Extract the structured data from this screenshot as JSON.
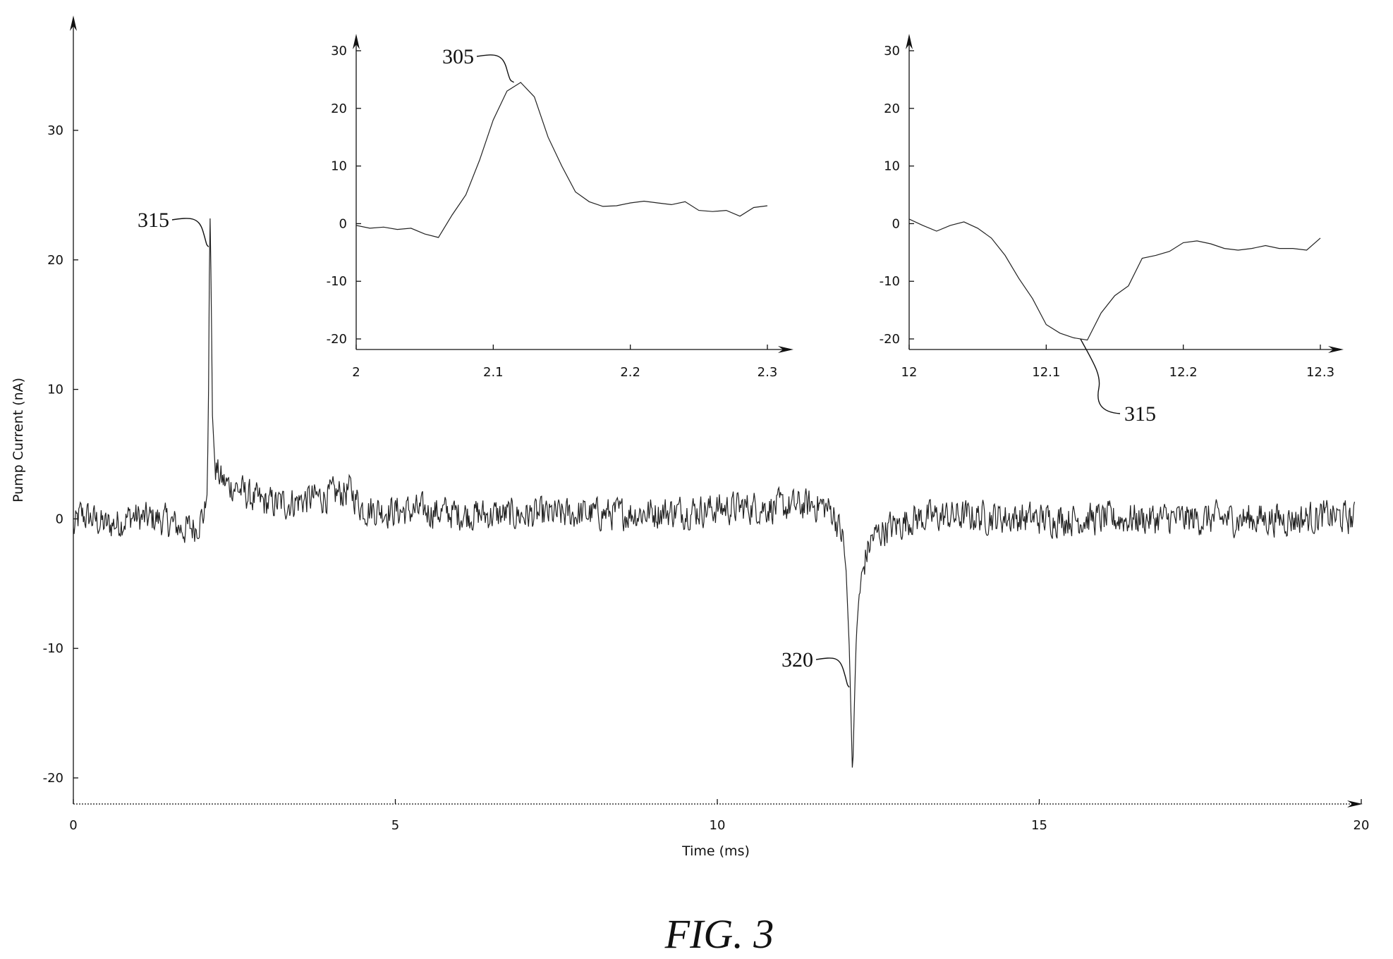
{
  "figure_caption": "FIG. 3",
  "chart_data": [
    {
      "id": "main",
      "type": "line",
      "xlabel": "Time (ms)",
      "ylabel": "Pump Current (nA)",
      "xlim": [
        0,
        20
      ],
      "ylim": [
        -22,
        38
      ],
      "xticks": [
        0,
        5,
        10,
        15,
        20
      ],
      "yticks": [
        -20,
        -10,
        0,
        10,
        20,
        30
      ],
      "grid": false,
      "noise_amplitude_nA": 1.4,
      "series": [
        {
          "x": [
            0,
            0.1,
            0.3,
            0.5,
            0.7,
            0.9,
            1.1,
            1.3,
            1.5,
            1.7,
            1.9,
            2.04,
            2.08,
            2.1,
            2.12,
            2.14,
            2.16,
            2.2,
            2.25,
            2.3,
            2.4,
            2.5,
            2.6,
            2.8,
            3.0,
            3.3,
            3.6,
            4.0,
            4.3,
            4.5,
            5.0,
            5.5,
            6.0,
            6.5,
            7.0,
            7.5,
            8.0,
            8.5,
            9.0,
            9.5,
            10.0,
            10.5,
            11.0,
            11.3,
            11.6,
            11.8,
            11.95,
            12.0,
            12.05,
            12.08,
            12.1,
            12.13,
            12.16,
            12.2,
            12.3,
            12.4,
            12.6,
            12.8,
            13.0,
            13.5,
            14.0,
            15.0,
            16.0,
            17.0,
            18.0,
            19.0,
            19.5,
            19.9
          ],
          "y": [
            -1,
            0.3,
            0,
            -0.5,
            -0.3,
            0.2,
            0,
            0,
            -0.3,
            -0.8,
            -0.6,
            0.5,
            2,
            10,
            24.5,
            18,
            8,
            4,
            3.5,
            3,
            2.6,
            2.5,
            2.2,
            1.5,
            1.2,
            1.2,
            1.5,
            1.8,
            2.2,
            0.8,
            0.6,
            0.6,
            0.4,
            0.3,
            0.3,
            0.3,
            0.4,
            0.4,
            0.5,
            0.6,
            0.8,
            0.9,
            0.9,
            1.0,
            1.1,
            0.5,
            -1.5,
            -4,
            -10,
            -16,
            -20,
            -14,
            -9,
            -6,
            -3,
            -1.5,
            -0.8,
            -0.5,
            0,
            0.2,
            0.2,
            0,
            0,
            0,
            0,
            0,
            0.2,
            0
          ]
        }
      ],
      "annotations": [
        {
          "label": "315",
          "x": 2.1,
          "y": 21
        },
        {
          "label": "320",
          "x": 12.05,
          "y": -13
        }
      ]
    },
    {
      "id": "inset-left",
      "type": "line",
      "xlim": [
        2,
        2.31
      ],
      "ylim": [
        -22,
        34
      ],
      "xticks": [
        2,
        2.1,
        2.2,
        2.3
      ],
      "yticks": [
        -20,
        -10,
        0,
        10,
        20,
        30
      ],
      "grid": false,
      "series": [
        {
          "x": [
            2.0,
            2.01,
            2.02,
            2.03,
            2.04,
            2.05,
            2.06,
            2.07,
            2.08,
            2.09,
            2.1,
            2.11,
            2.12,
            2.13,
            2.14,
            2.15,
            2.16,
            2.17,
            2.18,
            2.19,
            2.2,
            2.21,
            2.22,
            2.23,
            2.24,
            2.25,
            2.26,
            2.27,
            2.28,
            2.29,
            2.3
          ],
          "y": [
            -0.3,
            -0.8,
            -0.6,
            -1.0,
            -0.8,
            -1.8,
            -2.4,
            1.5,
            5.0,
            11.0,
            18.0,
            23.0,
            24.5,
            22.0,
            15.0,
            10.0,
            5.5,
            3.8,
            3.0,
            3.1,
            3.6,
            3.9,
            3.6,
            3.3,
            3.8,
            2.3,
            2.1,
            2.3,
            1.3,
            2.8,
            3.1
          ]
        }
      ],
      "annotations": [
        {
          "label": "305",
          "x": 2.115,
          "y": 24.5
        }
      ]
    },
    {
      "id": "inset-right",
      "type": "line",
      "xlim": [
        12,
        12.31
      ],
      "ylim": [
        -22,
        34
      ],
      "xticks": [
        12,
        12.1,
        12.2,
        12.3
      ],
      "xtick_labels": [
        "12",
        "12.1",
        "12.2",
        "12.3"
      ],
      "yticks": [
        -20,
        -10,
        0,
        10,
        20,
        30
      ],
      "grid": false,
      "series": [
        {
          "x": [
            12.0,
            12.01,
            12.02,
            12.03,
            12.04,
            12.05,
            12.06,
            12.07,
            12.08,
            12.09,
            12.1,
            12.11,
            12.12,
            12.13,
            12.14,
            12.15,
            12.16,
            12.17,
            12.18,
            12.19,
            12.2,
            12.21,
            12.22,
            12.23,
            12.24,
            12.25,
            12.26,
            12.27,
            12.28,
            12.29,
            12.3
          ],
          "y": [
            0.8,
            -0.3,
            -1.3,
            -0.3,
            0.3,
            -0.8,
            -2.5,
            -5.5,
            -9.5,
            -13.0,
            -17.5,
            -19.0,
            -19.8,
            -20.2,
            -15.5,
            -12.5,
            -10.8,
            -6.0,
            -5.5,
            -4.8,
            -3.3,
            -3.0,
            -3.5,
            -4.3,
            -4.6,
            -4.3,
            -3.8,
            -4.3,
            -4.3,
            -4.6,
            -2.5
          ]
        }
      ],
      "annotations": [
        {
          "label": "315",
          "x": 12.125,
          "y": -20
        }
      ]
    }
  ]
}
